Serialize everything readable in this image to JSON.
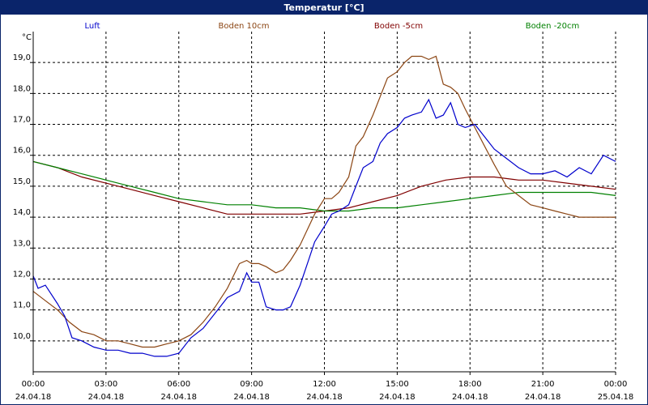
{
  "window": {
    "title": "Temperatur [°C]"
  },
  "chart_data": {
    "type": "line",
    "title": "Temperatur [°C]",
    "ylabel": "°C",
    "ylim": [
      9.0,
      20.0
    ],
    "yticks": [
      10.0,
      11.0,
      12.0,
      13.0,
      14.0,
      15.0,
      16.0,
      17.0,
      18.0,
      19.0
    ],
    "ytick_labels": [
      "10,0",
      "11,0",
      "12,0",
      "13,0",
      "14,0",
      "15,0",
      "16,0",
      "17,0",
      "18,0",
      "19,0"
    ],
    "xlim": [
      0,
      24
    ],
    "xticks": [
      0,
      3,
      6,
      9,
      12,
      15,
      18,
      21,
      24
    ],
    "xtick_labels": [
      [
        "00:00",
        "24.04.18"
      ],
      [
        "03:00",
        "24.04.18"
      ],
      [
        "06:00",
        "24.04.18"
      ],
      [
        "09:00",
        "24.04.18"
      ],
      [
        "12:00",
        "24.04.18"
      ],
      [
        "15:00",
        "24.04.18"
      ],
      [
        "18:00",
        "24.04.18"
      ],
      [
        "21:00",
        "24.04.18"
      ],
      [
        "00:00",
        "25.04.18"
      ]
    ],
    "grid": true,
    "legend_position": "top",
    "series": [
      {
        "name": "Luft",
        "color": "#0000cc",
        "x": [
          0,
          0.2,
          0.5,
          1.0,
          1.3,
          1.6,
          2.0,
          2.5,
          3.0,
          3.5,
          4.0,
          4.5,
          5.0,
          5.5,
          6.0,
          6.5,
          7.0,
          7.5,
          8.0,
          8.5,
          8.8,
          9.0,
          9.3,
          9.6,
          10.0,
          10.3,
          10.6,
          11.0,
          11.3,
          11.6,
          12.0,
          12.3,
          12.6,
          13.0,
          13.3,
          13.6,
          14.0,
          14.3,
          14.6,
          15.0,
          15.3,
          15.6,
          16.0,
          16.3,
          16.6,
          16.9,
          17.2,
          17.5,
          17.8,
          18.2,
          18.6,
          19.0,
          19.5,
          20.0,
          20.5,
          21.0,
          21.5,
          22.0,
          22.5,
          23.0,
          23.5,
          24.0
        ],
        "values": [
          12.1,
          11.7,
          11.8,
          11.2,
          10.8,
          10.1,
          10.0,
          9.8,
          9.7,
          9.7,
          9.6,
          9.6,
          9.5,
          9.5,
          9.6,
          10.1,
          10.4,
          10.9,
          11.4,
          11.6,
          12.2,
          11.9,
          11.9,
          11.1,
          11.0,
          11.0,
          11.1,
          11.8,
          12.5,
          13.2,
          13.7,
          14.1,
          14.2,
          14.4,
          15.0,
          15.6,
          15.8,
          16.4,
          16.7,
          16.9,
          17.2,
          17.3,
          17.4,
          17.8,
          17.2,
          17.3,
          17.7,
          17.0,
          16.9,
          17.0,
          16.6,
          16.2,
          15.9,
          15.6,
          15.4,
          15.4,
          15.5,
          15.3,
          15.6,
          15.4,
          16.0,
          15.8
        ]
      },
      {
        "name": "Boden 10cm",
        "color": "#8b4513",
        "x": [
          0,
          0.5,
          1.0,
          1.5,
          2.0,
          2.5,
          3.0,
          3.5,
          4.0,
          4.5,
          5.0,
          5.5,
          6.0,
          6.5,
          7.0,
          7.5,
          8.0,
          8.5,
          8.8,
          9.0,
          9.3,
          9.6,
          10.0,
          10.3,
          10.6,
          11.0,
          11.3,
          11.6,
          12.0,
          12.3,
          12.6,
          13.0,
          13.3,
          13.6,
          14.0,
          14.3,
          14.6,
          15.0,
          15.3,
          15.6,
          16.0,
          16.3,
          16.6,
          16.9,
          17.2,
          17.5,
          17.8,
          18.2,
          18.6,
          19.0,
          19.5,
          20.0,
          20.5,
          21.0,
          21.5,
          22.0,
          22.5,
          23.0,
          23.5,
          24.0
        ],
        "values": [
          11.6,
          11.3,
          11.0,
          10.6,
          10.3,
          10.2,
          10.0,
          10.0,
          9.9,
          9.8,
          9.8,
          9.9,
          10.0,
          10.2,
          10.6,
          11.1,
          11.7,
          12.5,
          12.6,
          12.5,
          12.5,
          12.4,
          12.2,
          12.3,
          12.6,
          13.1,
          13.6,
          14.1,
          14.6,
          14.6,
          14.8,
          15.3,
          16.3,
          16.6,
          17.3,
          17.9,
          18.5,
          18.7,
          19.0,
          19.2,
          19.2,
          19.1,
          19.2,
          18.3,
          18.2,
          18.0,
          17.5,
          16.9,
          16.3,
          15.7,
          15.0,
          14.7,
          14.4,
          14.3,
          14.2,
          14.1,
          14.0,
          14.0,
          14.0,
          14.0
        ]
      },
      {
        "name": "Boden -5cm",
        "color": "#800000",
        "x": [
          0,
          1.0,
          2.0,
          3.0,
          4.0,
          5.0,
          6.0,
          7.0,
          8.0,
          9.0,
          10.0,
          11.0,
          12.0,
          13.0,
          14.0,
          15.0,
          16.0,
          17.0,
          18.0,
          19.0,
          20.0,
          21.0,
          22.0,
          23.0,
          24.0
        ],
        "values": [
          15.8,
          15.6,
          15.3,
          15.1,
          14.9,
          14.7,
          14.5,
          14.3,
          14.1,
          14.1,
          14.1,
          14.1,
          14.2,
          14.3,
          14.5,
          14.7,
          15.0,
          15.2,
          15.3,
          15.3,
          15.2,
          15.2,
          15.1,
          15.0,
          14.9
        ]
      },
      {
        "name": "Boden -20cm",
        "color": "#008000",
        "x": [
          0,
          1.0,
          2.0,
          3.0,
          4.0,
          5.0,
          6.0,
          7.0,
          8.0,
          9.0,
          10.0,
          11.0,
          12.0,
          13.0,
          14.0,
          15.0,
          16.0,
          17.0,
          18.0,
          19.0,
          20.0,
          21.0,
          22.0,
          23.0,
          24.0
        ],
        "values": [
          15.8,
          15.6,
          15.4,
          15.2,
          15.0,
          14.8,
          14.6,
          14.5,
          14.4,
          14.4,
          14.3,
          14.3,
          14.2,
          14.2,
          14.3,
          14.3,
          14.4,
          14.5,
          14.6,
          14.7,
          14.8,
          14.8,
          14.8,
          14.8,
          14.7
        ]
      }
    ]
  }
}
